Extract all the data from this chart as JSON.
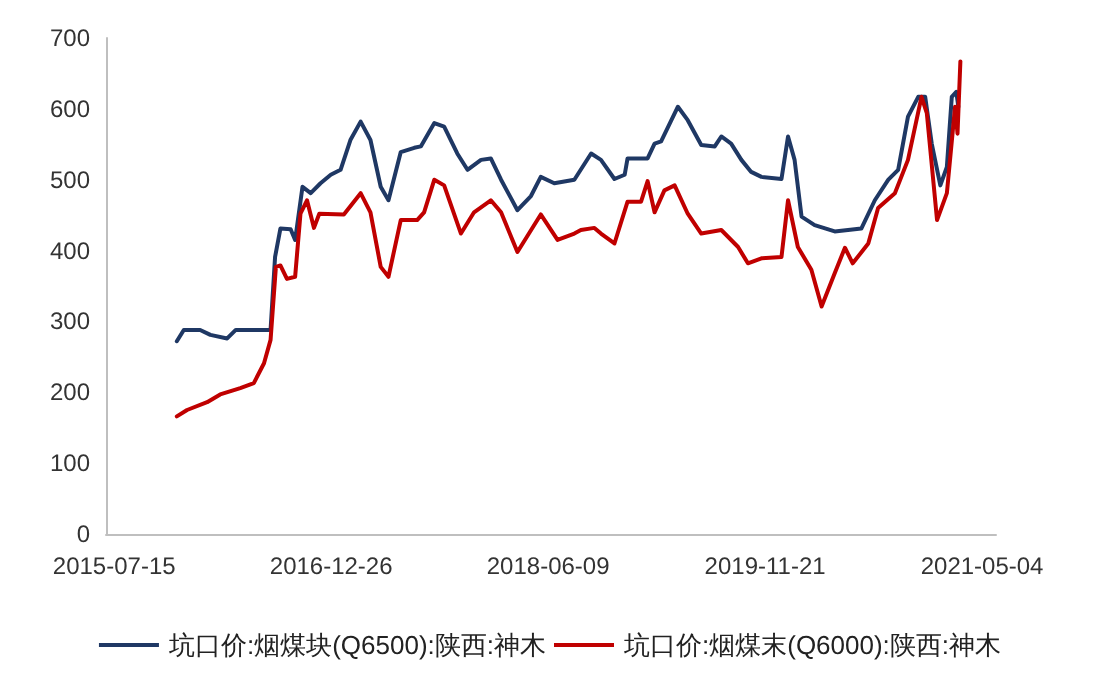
{
  "chart_data": {
    "type": "line",
    "xlim": [
      "2015-06-25",
      "2021-06-07"
    ],
    "xticks": [
      "2015-07-15",
      "2016-12-26",
      "2018-06-09",
      "2019-11-21",
      "2021-05-04"
    ],
    "ylim": [
      0,
      700
    ],
    "yticks": [
      0,
      100,
      200,
      300,
      400,
      500,
      600,
      700
    ],
    "grid": false,
    "legend": "bottom",
    "marker": "none",
    "line_style": "solid",
    "series": [
      {
        "name": "坑口价:烟煤块(Q6500):陕西:神木",
        "color": "#1f3864",
        "x": [
          "2015-12-15",
          "2016-01-01",
          "2016-02-10",
          "2016-03-06",
          "2016-04-16",
          "2016-05-07",
          "2016-07-31",
          "2016-08-11",
          "2016-08-24",
          "2016-09-18",
          "2016-09-29",
          "2016-10-17",
          "2016-11-06",
          "2016-11-30",
          "2016-12-25",
          "2017-01-18",
          "2017-02-11",
          "2017-03-08",
          "2017-04-01",
          "2017-04-26",
          "2017-05-15",
          "2017-06-14",
          "2017-07-17",
          "2017-08-02",
          "2017-09-04",
          "2017-09-28",
          "2017-10-30",
          "2017-11-24",
          "2017-12-27",
          "2018-01-20",
          "2018-02-14",
          "2018-03-26",
          "2018-04-28",
          "2018-05-22",
          "2018-06-24",
          "2018-08-12",
          "2018-09-22",
          "2018-10-16",
          "2018-11-18",
          "2018-12-13",
          "2018-12-20",
          "2019-02-07",
          "2019-02-24",
          "2019-03-12",
          "2019-04-22",
          "2019-05-16",
          "2019-06-18",
          "2019-07-21",
          "2019-08-06",
          "2019-08-30",
          "2019-09-24",
          "2019-10-18",
          "2019-11-12",
          "2019-12-31",
          "2020-01-16",
          "2020-02-01",
          "2020-02-18",
          "2020-03-21",
          "2020-05-09",
          "2020-07-13",
          "2020-08-15",
          "2020-09-17",
          "2020-10-11",
          "2020-11-04",
          "2020-11-29",
          "2020-12-16",
          "2021-01-01",
          "2021-01-22",
          "2021-02-07",
          "2021-02-19",
          "2021-03-02",
          "2021-03-07"
        ],
        "values": [
          272,
          288,
          288,
          281,
          276,
          288,
          288,
          391,
          431,
          430,
          415,
          490,
          481,
          495,
          507,
          514,
          556,
          582,
          556,
          490,
          471,
          539,
          545,
          547,
          580,
          575,
          537,
          514,
          528,
          530,
          500,
          457,
          477,
          504,
          495,
          500,
          537,
          528,
          501,
          507,
          530,
          530,
          551,
          554,
          603,
          584,
          549,
          547,
          561,
          551,
          528,
          511,
          504,
          501,
          561,
          528,
          448,
          436,
          427,
          431,
          471,
          500,
          514,
          589,
          617,
          617,
          551,
          492,
          518,
          617,
          624,
          603
        ]
      },
      {
        "name": "坑口价:烟煤末(Q6000):陕西:神木",
        "color": "#c00000",
        "x": [
          "2015-12-15",
          "2016-01-09",
          "2016-02-27",
          "2016-03-30",
          "2016-05-18",
          "2016-06-20",
          "2016-07-15",
          "2016-07-31",
          "2016-08-13",
          "2016-08-24",
          "2016-09-09",
          "2016-09-29",
          "2016-10-12",
          "2016-10-28",
          "2016-11-14",
          "2016-11-27",
          "2017-01-26",
          "2017-03-08",
          "2017-04-01",
          "2017-04-26",
          "2017-05-15",
          "2017-06-14",
          "2017-07-24",
          "2017-08-10",
          "2017-09-04",
          "2017-09-28",
          "2017-11-08",
          "2017-12-10",
          "2018-01-20",
          "2018-02-14",
          "2018-03-26",
          "2018-05-22",
          "2018-07-02",
          "2018-08-12",
          "2018-08-28",
          "2018-09-30",
          "2018-10-16",
          "2018-11-18",
          "2018-12-20",
          "2019-01-22",
          "2019-02-07",
          "2019-02-24",
          "2019-03-20",
          "2019-04-14",
          "2019-05-16",
          "2019-06-18",
          "2019-08-06",
          "2019-09-16",
          "2019-10-10",
          "2019-11-12",
          "2019-12-31",
          "2020-01-16",
          "2020-02-09",
          "2020-03-13",
          "2020-04-07",
          "2020-05-09",
          "2020-06-03",
          "2020-06-22",
          "2020-07-30",
          "2020-08-23",
          "2020-10-03",
          "2020-11-04",
          "2020-12-07",
          "2020-12-20",
          "2021-01-14",
          "2021-02-07",
          "2021-02-27",
          "2021-03-05",
          "2021-03-12"
        ],
        "values": [
          166,
          175,
          186,
          197,
          206,
          213,
          241,
          274,
          377,
          379,
          360,
          363,
          452,
          471,
          432,
          452,
          451,
          481,
          454,
          377,
          363,
          443,
          443,
          454,
          500,
          492,
          424,
          454,
          471,
          454,
          398,
          451,
          415,
          424,
          429,
          432,
          424,
          410,
          469,
          469,
          498,
          454,
          485,
          492,
          452,
          424,
          429,
          405,
          382,
          389,
          391,
          471,
          405,
          373,
          321,
          368,
          404,
          382,
          410,
          460,
          481,
          528,
          617,
          594,
          443,
          481,
          603,
          565,
          667
        ]
      }
    ]
  }
}
